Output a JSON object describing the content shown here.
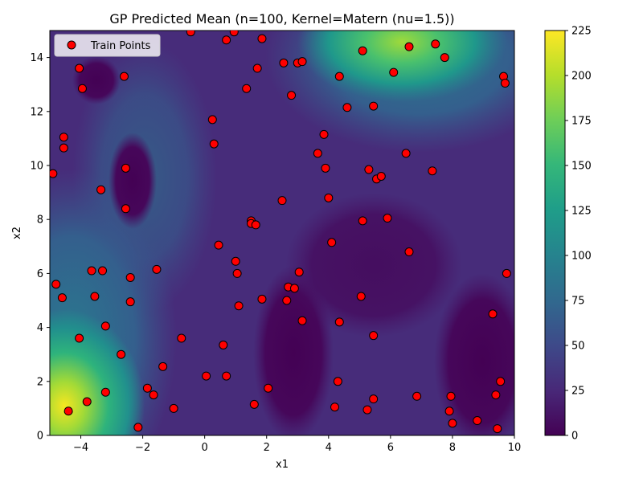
{
  "chart_data": {
    "type": "scatter",
    "title": "GP Predicted Mean (n=100, Kernel=Matern (nu=1.5))",
    "xlabel": "x1",
    "ylabel": "x2",
    "xlim": [
      -5,
      10
    ],
    "ylim": [
      0,
      15
    ],
    "xticks": [
      -4,
      -2,
      0,
      2,
      4,
      6,
      8,
      10
    ],
    "yticks": [
      0,
      2,
      4,
      6,
      8,
      10,
      12,
      14
    ],
    "legend": {
      "entries": [
        "Train Points"
      ],
      "position": "upper-left"
    },
    "colorbar": {
      "ticks": [
        0,
        25,
        50,
        75,
        100,
        125,
        150,
        175,
        200,
        225
      ],
      "range": [
        0,
        225
      ],
      "colormap": "viridis"
    },
    "colors": {
      "point_fill": "#ff0000",
      "point_edge": "#000000"
    },
    "series": [
      {
        "name": "Train Points",
        "points": [
          [
            -4.9,
            9.7
          ],
          [
            -4.8,
            5.6
          ],
          [
            -4.6,
            5.1
          ],
          [
            -4.55,
            11.05
          ],
          [
            -4.55,
            10.65
          ],
          [
            -4.4,
            0.9
          ],
          [
            -4.05,
            13.6
          ],
          [
            -4.05,
            3.6
          ],
          [
            -3.95,
            12.85
          ],
          [
            -3.8,
            1.25
          ],
          [
            -3.65,
            6.1
          ],
          [
            -3.55,
            5.15
          ],
          [
            -3.35,
            9.1
          ],
          [
            -3.3,
            6.1
          ],
          [
            -3.2,
            4.05
          ],
          [
            -3.2,
            1.6
          ],
          [
            -2.7,
            3.0
          ],
          [
            -2.6,
            13.3
          ],
          [
            -2.55,
            9.9
          ],
          [
            -2.55,
            8.4
          ],
          [
            -2.4,
            5.85
          ],
          [
            -2.4,
            4.95
          ],
          [
            -2.15,
            0.3
          ],
          [
            -1.85,
            1.75
          ],
          [
            -1.65,
            1.5
          ],
          [
            -1.55,
            6.15
          ],
          [
            -1.35,
            2.55
          ],
          [
            -1.0,
            1.0
          ],
          [
            -0.75,
            3.6
          ],
          [
            -0.45,
            14.95
          ],
          [
            0.05,
            2.2
          ],
          [
            0.25,
            11.7
          ],
          [
            0.3,
            10.8
          ],
          [
            0.45,
            7.05
          ],
          [
            0.6,
            3.35
          ],
          [
            0.7,
            2.2
          ],
          [
            0.7,
            14.65
          ],
          [
            0.95,
            14.95
          ],
          [
            1.0,
            6.45
          ],
          [
            1.05,
            6.0
          ],
          [
            1.1,
            4.8
          ],
          [
            1.35,
            12.85
          ],
          [
            1.5,
            7.95
          ],
          [
            1.5,
            7.85
          ],
          [
            1.6,
            1.15
          ],
          [
            1.65,
            7.8
          ],
          [
            1.7,
            13.6
          ],
          [
            1.85,
            14.7
          ],
          [
            1.85,
            5.05
          ],
          [
            2.05,
            1.75
          ],
          [
            2.5,
            8.7
          ],
          [
            2.55,
            13.8
          ],
          [
            2.65,
            5.0
          ],
          [
            2.7,
            5.5
          ],
          [
            2.8,
            12.6
          ],
          [
            2.9,
            5.45
          ],
          [
            3.0,
            13.8
          ],
          [
            3.05,
            6.05
          ],
          [
            3.15,
            13.85
          ],
          [
            3.15,
            4.25
          ],
          [
            3.65,
            10.45
          ],
          [
            3.85,
            11.15
          ],
          [
            3.9,
            9.9
          ],
          [
            4.0,
            8.8
          ],
          [
            4.1,
            7.15
          ],
          [
            4.2,
            1.05
          ],
          [
            4.3,
            2.0
          ],
          [
            4.35,
            13.3
          ],
          [
            4.35,
            4.2
          ],
          [
            4.6,
            12.15
          ],
          [
            5.05,
            5.15
          ],
          [
            5.1,
            14.25
          ],
          [
            5.1,
            7.95
          ],
          [
            5.25,
            0.95
          ],
          [
            5.3,
            9.85
          ],
          [
            5.45,
            1.35
          ],
          [
            5.45,
            12.2
          ],
          [
            5.45,
            3.7
          ],
          [
            5.55,
            9.5
          ],
          [
            5.7,
            9.6
          ],
          [
            5.9,
            8.05
          ],
          [
            6.1,
            13.45
          ],
          [
            6.5,
            10.45
          ],
          [
            6.6,
            14.4
          ],
          [
            6.6,
            6.8
          ],
          [
            6.85,
            1.45
          ],
          [
            7.35,
            9.8
          ],
          [
            7.45,
            14.5
          ],
          [
            7.75,
            14.0
          ],
          [
            7.9,
            0.9
          ],
          [
            7.95,
            1.45
          ],
          [
            8.0,
            0.45
          ],
          [
            8.8,
            0.55
          ],
          [
            9.3,
            4.5
          ],
          [
            9.4,
            1.5
          ],
          [
            9.45,
            0.25
          ],
          [
            9.55,
            2.0
          ],
          [
            9.65,
            13.3
          ],
          [
            9.7,
            13.05
          ],
          [
            9.75,
            6.0
          ]
        ]
      }
    ]
  }
}
